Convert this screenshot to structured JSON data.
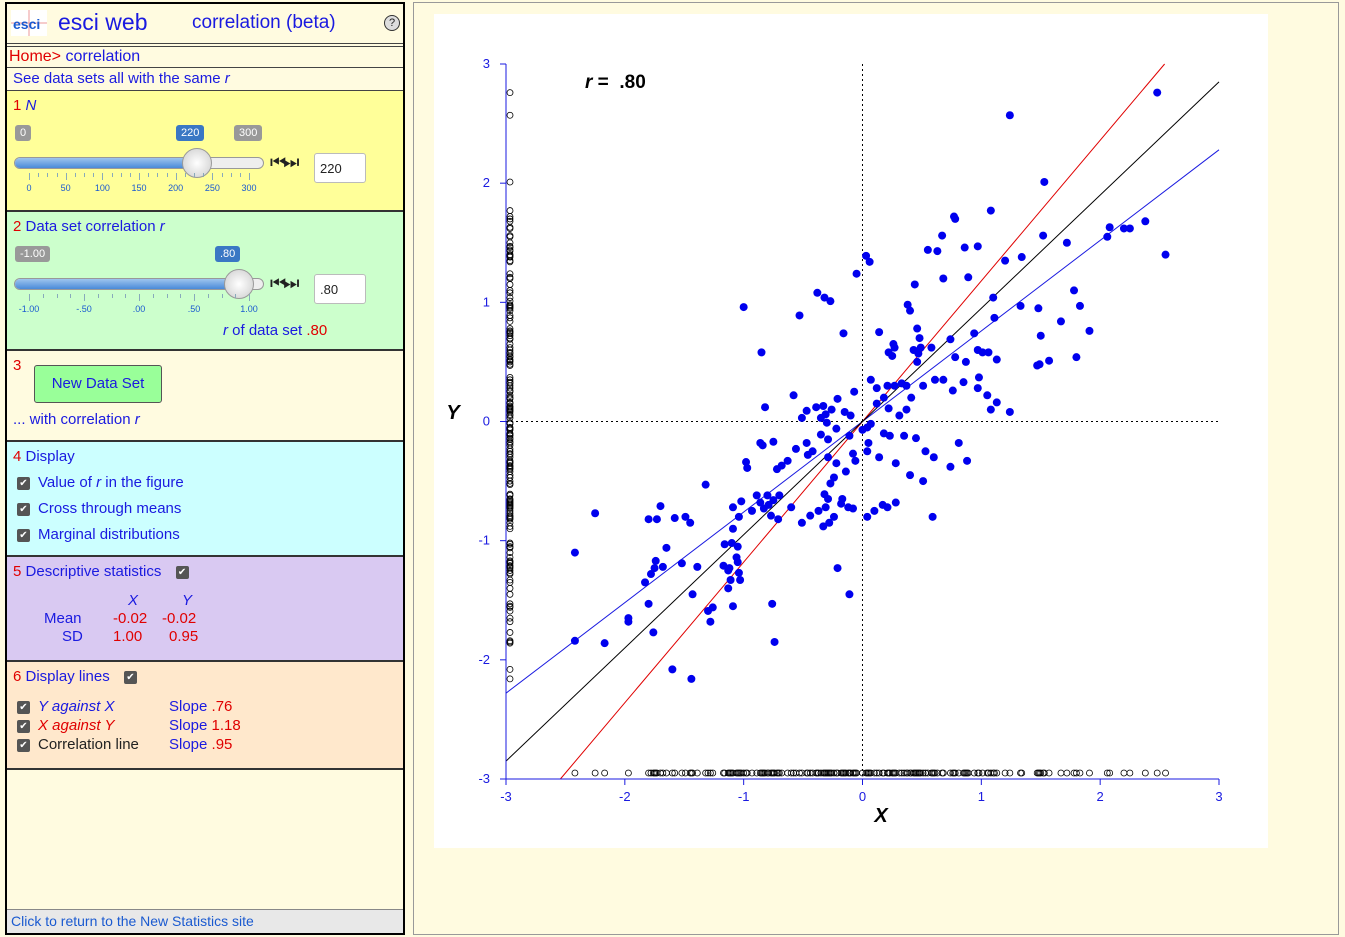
{
  "app": {
    "logo": "esci",
    "name": "esci web",
    "page": "correlation (beta)",
    "help_icon": "?"
  },
  "breadcrumb": {
    "home": "Home>",
    "page": " correlation"
  },
  "subtitle": {
    "text": "See data sets all with the same ",
    "r": "r"
  },
  "section1": {
    "num": "1",
    "label": "N",
    "slider": {
      "min_label": "0",
      "max_label": "300",
      "value_label": "220",
      "value_fraction": 0.733,
      "ticks": [
        "0",
        "50",
        "100",
        "150",
        "200",
        "250",
        "300"
      ]
    },
    "step_icon": "step-arrows",
    "input_value": "220"
  },
  "section2": {
    "num": "2",
    "label": "Data set correlation ",
    "label_r": "r",
    "slider": {
      "min_label": "-1.00",
      "value_label": ".80",
      "value_fraction": 0.9,
      "ticks": [
        "-1.00",
        "-.50",
        ".00",
        ".50",
        "1.00"
      ]
    },
    "step_icon": "step-arrows",
    "input_value": ".80",
    "r_of_data_label": "r",
    "r_of_data_text": " of data set ",
    "r_of_data_value": ".80"
  },
  "section3": {
    "num": "3",
    "button": "New Data Set",
    "caption": "... with correlation ",
    "caption_r": "r"
  },
  "section4": {
    "num": "4",
    "title": "Display",
    "options": [
      {
        "pre": "Value of ",
        "it": "r",
        "post": " in the figure",
        "checked": true
      },
      {
        "pre": "Cross through means",
        "it": "",
        "post": "",
        "checked": true
      },
      {
        "pre": "Marginal distributions",
        "it": "",
        "post": "",
        "checked": true
      }
    ]
  },
  "section5": {
    "num": "5",
    "title": "Descriptive statistics",
    "checked": true,
    "col_x": "X",
    "col_y": "Y",
    "mean_label": "Mean",
    "mean_x": "-0.02",
    "mean_y": "-0.02",
    "sd_label": "SD",
    "sd_x": "1.00",
    "sd_y": "0.95"
  },
  "section6": {
    "num": "6",
    "title": "Display lines",
    "checked": true,
    "lines": [
      {
        "label": "Y against X",
        "slope_label": "Slope",
        "slope": ".76",
        "color": "#1a1ae0"
      },
      {
        "label": "X against Y",
        "slope_label": "Slope",
        "slope": "1.18",
        "color": "#e00000"
      },
      {
        "label": "Correlation line",
        "slope_label": "Slope",
        "slope": ".95",
        "color": "#000000"
      }
    ]
  },
  "footer": "Click to return to the New Statistics site",
  "colors": {
    "point": "#0000ee",
    "y_on_x": "#1a1ae0",
    "x_on_y": "#e00000",
    "corr_line": "#000000"
  },
  "chart_data": {
    "type": "scatter",
    "xlabel": "X",
    "ylabel": "Y",
    "xlim": [
      -3,
      3
    ],
    "ylim": [
      -3,
      3
    ],
    "xticks": [
      "-3",
      "-2",
      "-1",
      "0",
      "1",
      "2",
      "3"
    ],
    "yticks": [
      "-3",
      "-2",
      "-1",
      "0",
      "1",
      "2",
      "3"
    ],
    "r_label": "r",
    "r_equals": " =  ",
    "r_value": ".80",
    "cross_at": [
      0,
      0
    ],
    "marginal_distributions": true,
    "regression_lines": [
      {
        "name": "Y against X",
        "slope": 0.76,
        "intercept": 0.0
      },
      {
        "name": "X against Y",
        "slope": 1.18,
        "intercept": 0.0
      },
      {
        "name": "Correlation line",
        "slope": 0.95,
        "intercept": 0.0
      }
    ],
    "points": [
      [
        2.48,
        2.76
      ],
      [
        1.24,
        2.57
      ],
      [
        1.53,
        2.01
      ],
      [
        2.55,
        1.4
      ],
      [
        2.38,
        1.68
      ],
      [
        2.2,
        1.62
      ],
      [
        2.25,
        1.62
      ],
      [
        2.08,
        1.63
      ],
      [
        2.06,
        1.55
      ],
      [
        1.72,
        1.5
      ],
      [
        1.52,
        1.56
      ],
      [
        1.08,
        1.77
      ],
      [
        0.78,
        1.7
      ],
      [
        0.77,
        1.72
      ],
      [
        0.67,
        1.56
      ],
      [
        0.86,
        1.46
      ],
      [
        0.55,
        1.44
      ],
      [
        0.63,
        1.43
      ],
      [
        0.97,
        1.47
      ],
      [
        1.2,
        1.35
      ],
      [
        1.34,
        1.38
      ],
      [
        0.68,
        1.2
      ],
      [
        0.89,
        1.21
      ],
      [
        0.44,
        1.15
      ],
      [
        1.1,
        1.04
      ],
      [
        1.78,
        1.1
      ],
      [
        1.83,
        0.97
      ],
      [
        1.48,
        0.95
      ],
      [
        1.67,
        0.84
      ],
      [
        1.91,
        0.76
      ],
      [
        1.33,
        0.97
      ],
      [
        0.4,
        0.93
      ],
      [
        0.38,
        0.98
      ],
      [
        0.03,
        1.39
      ],
      [
        0.06,
        1.34
      ],
      [
        -0.05,
        1.24
      ],
      [
        -0.38,
        1.08
      ],
      [
        -0.32,
        1.04
      ],
      [
        -0.27,
        1.01
      ],
      [
        -0.53,
        0.89
      ],
      [
        -1.0,
        0.96
      ],
      [
        0.14,
        0.75
      ],
      [
        -0.16,
        0.74
      ],
      [
        0.27,
        0.62
      ],
      [
        0.46,
        0.78
      ],
      [
        0.48,
        0.7
      ],
      [
        0.74,
        0.69
      ],
      [
        0.94,
        0.74
      ],
      [
        1.11,
        0.87
      ],
      [
        0.43,
        0.6
      ],
      [
        0.49,
        0.62
      ],
      [
        0.47,
        0.57
      ],
      [
        0.58,
        0.62
      ],
      [
        0.22,
        0.58
      ],
      [
        0.25,
        0.55
      ],
      [
        0.26,
        0.65
      ],
      [
        0.78,
        0.54
      ],
      [
        1.01,
        0.58
      ],
      [
        1.06,
        0.58
      ],
      [
        0.97,
        0.6
      ],
      [
        1.13,
        0.52
      ],
      [
        0.87,
        0.5
      ],
      [
        1.49,
        0.48
      ],
      [
        1.8,
        0.54
      ],
      [
        1.5,
        0.72
      ],
      [
        1.47,
        0.47
      ],
      [
        1.57,
        0.51
      ],
      [
        0.07,
        0.35
      ],
      [
        0.12,
        0.28
      ],
      [
        -0.07,
        0.25
      ],
      [
        0.21,
        0.3
      ],
      [
        0.27,
        0.3
      ],
      [
        0.33,
        0.32
      ],
      [
        0.37,
        0.3
      ],
      [
        0.46,
        0.5
      ],
      [
        0.51,
        0.3
      ],
      [
        0.61,
        0.35
      ],
      [
        0.68,
        0.35
      ],
      [
        0.85,
        0.33
      ],
      [
        0.98,
        0.37
      ],
      [
        0.97,
        0.28
      ],
      [
        1.05,
        0.22
      ],
      [
        1.13,
        0.16
      ],
      [
        1.24,
        0.08
      ],
      [
        1.08,
        0.1
      ],
      [
        0.76,
        0.26
      ],
      [
        -0.85,
        0.58
      ],
      [
        -0.82,
        0.12
      ],
      [
        -0.58,
        0.22
      ],
      [
        -0.47,
        0.09
      ],
      [
        -0.51,
        0.03
      ],
      [
        -0.39,
        0.12
      ],
      [
        -0.33,
        0.13
      ],
      [
        -0.31,
        0.06
      ],
      [
        -0.35,
        0.03
      ],
      [
        -0.3,
        -0.01
      ],
      [
        -0.26,
        0.1
      ],
      [
        -0.21,
        0.19
      ],
      [
        -0.15,
        0.08
      ],
      [
        -0.1,
        0.05
      ],
      [
        -0.22,
        -0.06
      ],
      [
        -0.29,
        -0.15
      ],
      [
        -0.35,
        -0.11
      ],
      [
        -0.11,
        -0.12
      ],
      [
        0.0,
        -0.07
      ],
      [
        0.07,
        -0.02
      ],
      [
        0.04,
        -0.05
      ],
      [
        0.12,
        0.15
      ],
      [
        0.18,
        0.2
      ],
      [
        0.22,
        0.11
      ],
      [
        0.31,
        0.05
      ],
      [
        0.37,
        0.1
      ],
      [
        0.41,
        0.2
      ],
      [
        0.23,
        -0.12
      ],
      [
        0.35,
        -0.12
      ],
      [
        0.45,
        -0.14
      ],
      [
        0.18,
        -0.1
      ],
      [
        0.05,
        -0.18
      ],
      [
        0.04,
        -0.25
      ],
      [
        0.14,
        -0.3
      ],
      [
        0.28,
        -0.35
      ],
      [
        0.53,
        -0.25
      ],
      [
        0.6,
        -0.3
      ],
      [
        0.74,
        -0.38
      ],
      [
        0.81,
        -0.18
      ],
      [
        0.88,
        -0.33
      ],
      [
        0.59,
        -0.8
      ],
      [
        0.4,
        -0.45
      ],
      [
        0.51,
        -0.5
      ],
      [
        0.28,
        -0.68
      ],
      [
        0.21,
        -0.72
      ],
      [
        0.1,
        -0.75
      ],
      [
        0.04,
        -0.8
      ],
      [
        0.17,
        -0.7
      ],
      [
        -0.08,
        -0.73
      ],
      [
        -0.12,
        -0.72
      ],
      [
        -0.18,
        -0.69
      ],
      [
        -0.17,
        -0.65
      ],
      [
        -0.06,
        -0.33
      ],
      [
        -0.08,
        -0.27
      ],
      [
        -0.14,
        -0.42
      ],
      [
        -0.22,
        -0.35
      ],
      [
        -0.29,
        -0.3
      ],
      [
        -0.24,
        -0.47
      ],
      [
        -0.27,
        -0.52
      ],
      [
        -0.32,
        -0.61
      ],
      [
        -0.29,
        -0.65
      ],
      [
        -0.31,
        -0.72
      ],
      [
        -0.37,
        -0.75
      ],
      [
        -0.24,
        -0.8
      ],
      [
        -0.28,
        -0.85
      ],
      [
        -0.33,
        -0.88
      ],
      [
        -0.44,
        -0.79
      ],
      [
        -0.51,
        -0.85
      ],
      [
        -0.6,
        -0.72
      ],
      [
        -0.71,
        -0.82
      ],
      [
        -0.77,
        -0.79
      ],
      [
        -0.8,
        -0.62
      ],
      [
        -0.79,
        -0.7
      ],
      [
        -0.83,
        -0.73
      ],
      [
        -0.75,
        -0.66
      ],
      [
        -0.7,
        -0.62
      ],
      [
        -0.86,
        -0.68
      ],
      [
        -0.89,
        -0.62
      ],
      [
        -0.93,
        -0.75
      ],
      [
        -1.02,
        -0.67
      ],
      [
        -1.09,
        -0.72
      ],
      [
        -1.04,
        -0.8
      ],
      [
        -1.09,
        -0.9
      ],
      [
        -1.16,
        -1.03
      ],
      [
        -1.1,
        -1.02
      ],
      [
        -1.05,
        -1.05
      ],
      [
        -1.06,
        -1.14
      ],
      [
        -1.12,
        -1.23
      ],
      [
        -1.13,
        -1.25
      ],
      [
        -1.17,
        -1.21
      ],
      [
        -1.11,
        -1.33
      ],
      [
        -1.03,
        -1.33
      ],
      [
        -1.04,
        -1.27
      ],
      [
        -1.13,
        -1.4
      ],
      [
        -1.05,
        -1.18
      ],
      [
        -1.39,
        -1.22
      ],
      [
        -1.45,
        -0.85
      ],
      [
        -1.49,
        -0.8
      ],
      [
        -1.52,
        -1.19
      ],
      [
        -1.65,
        -1.06
      ],
      [
        -1.74,
        -1.17
      ],
      [
        -1.75,
        -1.23
      ],
      [
        -1.83,
        -1.35
      ],
      [
        -1.78,
        -1.28
      ],
      [
        -1.68,
        -1.22
      ],
      [
        -1.8,
        -0.82
      ],
      [
        -1.73,
        -0.82
      ],
      [
        -1.7,
        -0.71
      ],
      [
        -1.58,
        -0.81
      ],
      [
        -1.32,
        -0.53
      ],
      [
        -0.98,
        -0.34
      ],
      [
        -0.97,
        -0.39
      ],
      [
        -0.86,
        -0.18
      ],
      [
        -0.84,
        -0.2
      ],
      [
        -0.75,
        -0.17
      ],
      [
        -0.72,
        -0.4
      ],
      [
        -0.68,
        -0.37
      ],
      [
        -0.63,
        -0.33
      ],
      [
        -0.46,
        -0.28
      ],
      [
        -0.42,
        -0.25
      ],
      [
        -0.47,
        -0.18
      ],
      [
        -0.56,
        -0.23
      ],
      [
        -2.42,
        -1.1
      ],
      [
        -2.25,
        -0.77
      ],
      [
        -1.8,
        -1.53
      ],
      [
        -1.43,
        -1.45
      ],
      [
        -1.76,
        -1.77
      ],
      [
        -1.97,
        -1.65
      ],
      [
        -1.97,
        -1.68
      ],
      [
        -2.42,
        -1.84
      ],
      [
        -2.17,
        -1.86
      ],
      [
        -1.44,
        -2.16
      ],
      [
        -1.6,
        -2.08
      ],
      [
        -1.28,
        -1.68
      ],
      [
        -1.3,
        -1.59
      ],
      [
        -1.26,
        -1.56
      ],
      [
        -1.09,
        -1.55
      ],
      [
        -0.76,
        -1.53
      ],
      [
        -0.74,
        -1.85
      ],
      [
        -0.21,
        -1.23
      ],
      [
        -0.11,
        -1.45
      ]
    ],
    "marginal_x": [
      -2.42,
      -2.25,
      -2.17,
      -1.97,
      -1.8,
      -1.78,
      -1.76,
      -1.75,
      -1.74,
      -1.73,
      -1.7,
      -1.68,
      -1.65,
      -1.6,
      -1.58,
      -1.52,
      -1.49,
      -1.45,
      -1.44,
      -1.43,
      -1.39,
      -1.32,
      -1.3,
      -1.28,
      -1.26,
      -1.17,
      -1.16,
      -1.13,
      -1.12,
      -1.11,
      -1.1,
      -1.09,
      -1.06,
      -1.05,
      -1.04,
      -1.03,
      -1.02,
      -1.0,
      -0.98,
      -0.97,
      -0.93,
      -0.89,
      -0.86,
      -0.85,
      -0.84,
      -0.83,
      -0.82,
      -0.8,
      -0.79,
      -0.77,
      -0.76,
      -0.75,
      -0.74,
      -0.72,
      -0.71,
      -0.7,
      -0.68,
      -0.63,
      -0.6,
      -0.58,
      -0.56,
      -0.53,
      -0.51,
      -0.47,
      -0.46,
      -0.44,
      -0.42,
      -0.39,
      -0.38,
      -0.37,
      -0.35,
      -0.33,
      -0.32,
      -0.31,
      -0.3,
      -0.29,
      -0.28,
      -0.27,
      -0.26,
      -0.24,
      -0.22,
      -0.21,
      -0.18,
      -0.17,
      -0.16,
      -0.15,
      -0.14,
      -0.12,
      -0.11,
      -0.1,
      -0.08,
      -0.07,
      -0.06,
      -0.05,
      0.0,
      0.03,
      0.04,
      0.05,
      0.06,
      0.07,
      0.1,
      0.12,
      0.14,
      0.17,
      0.18,
      0.21,
      0.22,
      0.23,
      0.25,
      0.26,
      0.27,
      0.28,
      0.31,
      0.33,
      0.35,
      0.37,
      0.38,
      0.4,
      0.41,
      0.43,
      0.44,
      0.45,
      0.46,
      0.47,
      0.48,
      0.49,
      0.51,
      0.53,
      0.55,
      0.58,
      0.59,
      0.6,
      0.61,
      0.63,
      0.67,
      0.68,
      0.74,
      0.76,
      0.77,
      0.78,
      0.81,
      0.85,
      0.86,
      0.87,
      0.88,
      0.89,
      0.94,
      0.97,
      0.98,
      1.01,
      1.05,
      1.06,
      1.08,
      1.1,
      1.11,
      1.13,
      1.2,
      1.24,
      1.33,
      1.34,
      1.47,
      1.48,
      1.49,
      1.5,
      1.52,
      1.53,
      1.57,
      1.67,
      1.72,
      1.78,
      1.8,
      1.83,
      1.91,
      2.06,
      2.08,
      2.2,
      2.25,
      2.38,
      2.48,
      2.55
    ],
    "marginal_y": [
      2.76,
      2.57,
      2.01,
      1.77,
      1.72,
      1.7,
      1.68,
      1.63,
      1.62,
      1.56,
      1.55,
      1.5,
      1.47,
      1.46,
      1.44,
      1.43,
      1.4,
      1.39,
      1.38,
      1.35,
      1.34,
      1.24,
      1.21,
      1.2,
      1.15,
      1.1,
      1.08,
      1.04,
      1.01,
      0.98,
      0.97,
      0.96,
      0.95,
      0.93,
      0.89,
      0.87,
      0.84,
      0.78,
      0.76,
      0.75,
      0.74,
      0.72,
      0.7,
      0.69,
      0.65,
      0.62,
      0.6,
      0.58,
      0.57,
      0.55,
      0.54,
      0.52,
      0.51,
      0.5,
      0.48,
      0.47,
      0.37,
      0.35,
      0.33,
      0.32,
      0.3,
      0.28,
      0.26,
      0.25,
      0.22,
      0.2,
      0.19,
      0.16,
      0.15,
      0.13,
      0.12,
      0.11,
      0.1,
      0.09,
      0.08,
      0.06,
      0.05,
      0.03,
      -0.01,
      -0.02,
      -0.05,
      -0.06,
      -0.07,
      -0.1,
      -0.11,
      -0.12,
      -0.14,
      -0.15,
      -0.17,
      -0.18,
      -0.2,
      -0.23,
      -0.25,
      -0.27,
      -0.28,
      -0.3,
      -0.33,
      -0.34,
      -0.35,
      -0.37,
      -0.38,
      -0.39,
      -0.4,
      -0.42,
      -0.45,
      -0.47,
      -0.5,
      -0.52,
      -0.53,
      -0.61,
      -0.62,
      -0.65,
      -0.66,
      -0.67,
      -0.68,
      -0.69,
      -0.7,
      -0.71,
      -0.72,
      -0.73,
      -0.75,
      -0.77,
      -0.79,
      -0.8,
      -0.81,
      -0.82,
      -0.85,
      -0.88,
      -0.9,
      -1.02,
      -1.03,
      -1.05,
      -1.06,
      -1.1,
      -1.14,
      -1.17,
      -1.18,
      -1.19,
      -1.21,
      -1.22,
      -1.23,
      -1.25,
      -1.27,
      -1.28,
      -1.33,
      -1.35,
      -1.4,
      -1.45,
      -1.53,
      -1.55,
      -1.56,
      -1.59,
      -1.65,
      -1.68,
      -1.77,
      -1.84,
      -1.85,
      -1.86,
      -2.08,
      -2.16
    ]
  }
}
